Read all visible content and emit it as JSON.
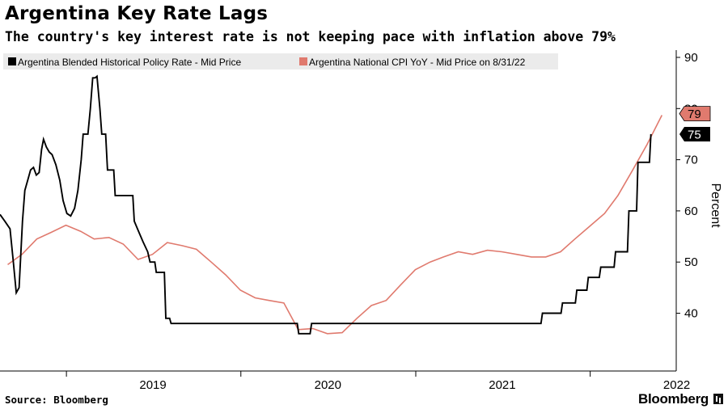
{
  "header": {
    "title": "Argentina Key Rate Lags",
    "subtitle": "The country's key interest rate is not keeping pace with inflation above 79%"
  },
  "footer": {
    "source": "Source: Bloomberg",
    "brand": "Bloomberg"
  },
  "chart_data": {
    "type": "line",
    "ylabel": "Percent",
    "ylim": [
      30,
      92
    ],
    "y_ticks": [
      "90",
      "80",
      "70",
      "60",
      "50",
      "40"
    ],
    "x_ticks": [
      "2019",
      "2020",
      "2021",
      "2022"
    ],
    "grid": false,
    "legend_placement": "top-left",
    "series": [
      {
        "name": "Argentina Blended Historical Policy Rate - Mid Price",
        "color": "#000000",
        "end_badge": "75",
        "points": [
          [
            "2018-08-15",
            59.3
          ],
          [
            "2018-08-25",
            58.0
          ],
          [
            "2018-09-05",
            56.5
          ],
          [
            "2018-09-12",
            50.0
          ],
          [
            "2018-09-18",
            44.0
          ],
          [
            "2018-09-24",
            45.0
          ],
          [
            "2018-10-01",
            58.0
          ],
          [
            "2018-10-06",
            64.0
          ],
          [
            "2018-10-12",
            66.0
          ],
          [
            "2018-10-18",
            68.0
          ],
          [
            "2018-10-24",
            68.5
          ],
          [
            "2018-10-30",
            67.0
          ],
          [
            "2018-11-05",
            67.5
          ],
          [
            "2018-11-10",
            72.0
          ],
          [
            "2018-11-14",
            74.0
          ],
          [
            "2018-11-20",
            72.5
          ],
          [
            "2018-11-26",
            71.5
          ],
          [
            "2018-12-02",
            71.0
          ],
          [
            "2018-12-10",
            69.0
          ],
          [
            "2018-12-18",
            66.0
          ],
          [
            "2018-12-25",
            62.0
          ],
          [
            "2019-01-02",
            59.5
          ],
          [
            "2019-01-10",
            59.0
          ],
          [
            "2019-01-18",
            60.5
          ],
          [
            "2019-01-25",
            64.0
          ],
          [
            "2019-02-01",
            70.0
          ],
          [
            "2019-02-05",
            75.0
          ],
          [
            "2019-02-15",
            75.0
          ],
          [
            "2019-02-20",
            80.0
          ],
          [
            "2019-02-25",
            86.0
          ],
          [
            "2019-03-02",
            86.0
          ],
          [
            "2019-03-06",
            86.3
          ],
          [
            "2019-03-12",
            80.0
          ],
          [
            "2019-03-16",
            75.0
          ],
          [
            "2019-03-24",
            75.0
          ],
          [
            "2019-03-28",
            68.0
          ],
          [
            "2019-04-10",
            68.0
          ],
          [
            "2019-04-13",
            63.0
          ],
          [
            "2019-05-20",
            63.0
          ],
          [
            "2019-05-23",
            58.0
          ],
          [
            "2019-06-01",
            56.0
          ],
          [
            "2019-06-10",
            54.0
          ],
          [
            "2019-06-20",
            52.0
          ],
          [
            "2019-06-25",
            50.0
          ],
          [
            "2019-07-05",
            50.0
          ],
          [
            "2019-07-08",
            48.0
          ],
          [
            "2019-07-25",
            48.0
          ],
          [
            "2019-07-28",
            39.0
          ],
          [
            "2019-08-05",
            39.0
          ],
          [
            "2019-08-08",
            38.0
          ],
          [
            "2020-04-28",
            38.0
          ],
          [
            "2020-05-01",
            36.0
          ],
          [
            "2020-05-25",
            36.0
          ],
          [
            "2020-05-28",
            38.0
          ],
          [
            "2021-09-20",
            38.0
          ],
          [
            "2021-09-23",
            40.0
          ],
          [
            "2021-11-01",
            40.0
          ],
          [
            "2021-11-04",
            42.0
          ],
          [
            "2021-12-01",
            42.0
          ],
          [
            "2021-12-04",
            44.5
          ],
          [
            "2021-12-25",
            44.5
          ],
          [
            "2021-12-28",
            47.0
          ],
          [
            "2022-01-20",
            47.0
          ],
          [
            "2022-01-23",
            49.0
          ],
          [
            "2022-02-20",
            49.0
          ],
          [
            "2022-02-23",
            52.0
          ],
          [
            "2022-03-20",
            52.0
          ],
          [
            "2022-03-23",
            60.0
          ],
          [
            "2022-04-08",
            60.0
          ],
          [
            "2022-04-11",
            69.5
          ],
          [
            "2022-05-05",
            69.5
          ],
          [
            "2022-05-08",
            75.0
          ]
        ]
      },
      {
        "name": "Argentina National CPI YoY - Mid Price on 8/31/22",
        "color": "#e07a6e",
        "end_badge": "79",
        "points": [
          [
            "2018-08-31",
            49.5
          ],
          [
            "2018-09-30",
            51.5
          ],
          [
            "2018-10-31",
            54.5
          ],
          [
            "2018-11-30",
            55.8
          ],
          [
            "2018-12-31",
            57.2
          ],
          [
            "2019-01-31",
            56.0
          ],
          [
            "2019-02-28",
            54.5
          ],
          [
            "2019-03-31",
            54.8
          ],
          [
            "2019-04-30",
            53.5
          ],
          [
            "2019-05-31",
            50.5
          ],
          [
            "2019-06-30",
            51.5
          ],
          [
            "2019-07-31",
            53.8
          ],
          [
            "2019-08-31",
            53.2
          ],
          [
            "2019-09-30",
            52.5
          ],
          [
            "2019-10-31",
            50.0
          ],
          [
            "2019-11-30",
            47.5
          ],
          [
            "2019-12-31",
            44.5
          ],
          [
            "2020-01-31",
            43.0
          ],
          [
            "2020-02-29",
            42.5
          ],
          [
            "2020-03-31",
            42.0
          ],
          [
            "2020-04-30",
            36.8
          ],
          [
            "2020-05-31",
            37.0
          ],
          [
            "2020-06-30",
            36.0
          ],
          [
            "2020-07-31",
            36.2
          ],
          [
            "2020-08-31",
            39.0
          ],
          [
            "2020-09-30",
            41.5
          ],
          [
            "2020-10-31",
            42.5
          ],
          [
            "2020-11-30",
            45.5
          ],
          [
            "2020-12-31",
            48.5
          ],
          [
            "2021-01-31",
            50.0
          ],
          [
            "2021-02-28",
            51.0
          ],
          [
            "2021-03-31",
            52.0
          ],
          [
            "2021-04-30",
            51.5
          ],
          [
            "2021-05-31",
            52.3
          ],
          [
            "2021-06-30",
            52.0
          ],
          [
            "2021-07-31",
            51.5
          ],
          [
            "2021-08-31",
            51.0
          ],
          [
            "2021-09-30",
            51.0
          ],
          [
            "2021-10-31",
            52.0
          ],
          [
            "2021-11-30",
            54.5
          ],
          [
            "2021-12-31",
            57.0
          ],
          [
            "2022-01-31",
            59.5
          ],
          [
            "2022-02-28",
            63.0
          ],
          [
            "2022-03-31",
            68.0
          ],
          [
            "2022-04-30",
            73.0
          ],
          [
            "2022-05-31",
            78.7
          ]
        ]
      }
    ]
  }
}
